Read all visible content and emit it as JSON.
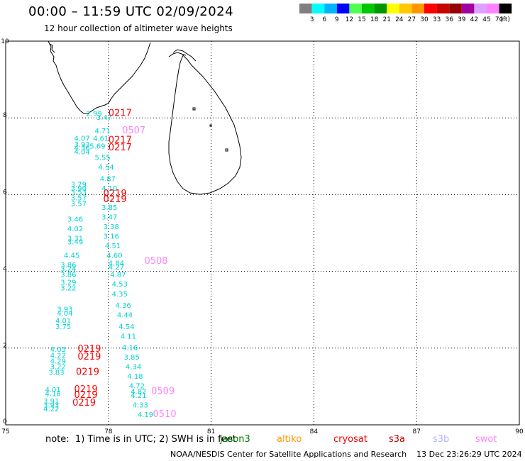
{
  "header": {
    "title": "00:00 – 11:59 UTC 02/09/2024",
    "subtitle": "12 hour collection of altimeter wave heights"
  },
  "colorbar": {
    "colors": [
      "#808080",
      "#00ffff",
      "#00b4ff",
      "#0000ff",
      "#50ff50",
      "#00c800",
      "#009600",
      "#ffff00",
      "#ffc800",
      "#ff9600",
      "#ff0000",
      "#c80000",
      "#960000",
      "#a000a0",
      "#dca0ff",
      "#ff82ff",
      "#000000"
    ],
    "labels": [
      "3",
      "6",
      "9",
      "12",
      "15",
      "18",
      "21",
      "24",
      "27",
      "30",
      "33",
      "36",
      "39",
      "42",
      "45",
      "70",
      "(ft)"
    ]
  },
  "axes": {
    "x_ticks": [
      "75",
      "78",
      "81",
      "84",
      "87",
      "90"
    ],
    "y_ticks": [
      "0",
      "2",
      "4",
      "6",
      "8",
      "10"
    ]
  },
  "chart_data": {
    "type": "scatter",
    "xlim": [
      75,
      90
    ],
    "ylim": [
      0,
      10
    ],
    "grid": true,
    "units": "ft",
    "passes": [
      {
        "label": "0217",
        "satellite": "cryosat",
        "lon": 78.0,
        "lat": 8.05
      },
      {
        "label": "0507",
        "satellite": "swot",
        "lon": 78.4,
        "lat": 7.6
      },
      {
        "label": "0217",
        "satellite": "cryosat",
        "lon": 78.0,
        "lat": 7.35
      },
      {
        "label": "0217",
        "satellite": "cryosat",
        "lon": 78.0,
        "lat": 7.15
      },
      {
        "label": "0219",
        "satellite": "cryosat",
        "lon": 77.85,
        "lat": 5.95
      },
      {
        "label": "0219",
        "satellite": "cryosat",
        "lon": 77.85,
        "lat": 5.8
      },
      {
        "label": "0508",
        "satellite": "swot",
        "lon": 79.05,
        "lat": 4.2
      },
      {
        "label": "0219",
        "satellite": "cryosat",
        "lon": 77.1,
        "lat": 1.9
      },
      {
        "label": "0219",
        "satellite": "cryosat",
        "lon": 77.1,
        "lat": 1.7
      },
      {
        "label": "0219",
        "satellite": "cryosat",
        "lon": 77.05,
        "lat": 1.3
      },
      {
        "label": "0219",
        "satellite": "cryosat",
        "lon": 77.0,
        "lat": 0.85
      },
      {
        "label": "0219",
        "satellite": "cryosat",
        "lon": 77.0,
        "lat": 0.7
      },
      {
        "label": "0219",
        "satellite": "cryosat",
        "lon": 76.95,
        "lat": 0.5
      },
      {
        "label": "0509",
        "satellite": "swot",
        "lon": 79.25,
        "lat": 0.8
      },
      {
        "label": "0510",
        "satellite": "swot",
        "lon": 79.3,
        "lat": 0.2
      }
    ],
    "points": [
      {
        "v": "2.99",
        "lon": 77.35,
        "lat": 8.05
      },
      {
        "v": "3.4?",
        "lon": 77.65,
        "lat": 7.95
      },
      {
        "v": "4.71",
        "lon": 77.6,
        "lat": 7.6
      },
      {
        "v": "4.07",
        "lon": 77.0,
        "lat": 7.4
      },
      {
        "v": "4.61",
        "lon": 77.55,
        "lat": 7.4
      },
      {
        "v": "3.93",
        "lon": 77.0,
        "lat": 7.25
      },
      {
        "v": "5.69",
        "lon": 77.45,
        "lat": 7.2
      },
      {
        "v": "4.36",
        "lon": 77.0,
        "lat": 7.15
      },
      {
        "v": "4.04",
        "lon": 77.0,
        "lat": 7.05
      },
      {
        "v": "5.55",
        "lon": 77.6,
        "lat": 6.9
      },
      {
        "v": "4.54",
        "lon": 77.7,
        "lat": 6.65
      },
      {
        "v": "4.87",
        "lon": 77.75,
        "lat": 6.35
      },
      {
        "v": "3.79",
        "lon": 76.9,
        "lat": 6.2
      },
      {
        "v": "3.90",
        "lon": 76.9,
        "lat": 6.1
      },
      {
        "v": "4.10",
        "lon": 77.8,
        "lat": 6.1
      },
      {
        "v": "3.53",
        "lon": 76.9,
        "lat": 6.0
      },
      {
        "v": "3.57",
        "lon": 76.9,
        "lat": 5.85
      },
      {
        "v": "3.57",
        "lon": 76.9,
        "lat": 5.7
      },
      {
        "v": "3.85",
        "lon": 77.8,
        "lat": 5.6
      },
      {
        "v": "3.46",
        "lon": 76.8,
        "lat": 5.3
      },
      {
        "v": "3.47",
        "lon": 77.8,
        "lat": 5.35
      },
      {
        "v": "4.02",
        "lon": 76.8,
        "lat": 5.05
      },
      {
        "v": "3.38",
        "lon": 77.85,
        "lat": 5.1
      },
      {
        "v": "3.31",
        "lon": 76.8,
        "lat": 4.8
      },
      {
        "v": "3.16",
        "lon": 77.85,
        "lat": 4.85
      },
      {
        "v": "3.49",
        "lon": 76.8,
        "lat": 4.7
      },
      {
        "v": "4.51",
        "lon": 77.9,
        "lat": 4.6
      },
      {
        "v": "4.45",
        "lon": 76.7,
        "lat": 4.35
      },
      {
        "v": "4.60",
        "lon": 77.95,
        "lat": 4.35
      },
      {
        "v": "3.86",
        "lon": 76.6,
        "lat": 4.1
      },
      {
        "v": "4.84",
        "lon": 78.0,
        "lat": 4.15
      },
      {
        "v": "3.24",
        "lon": 76.6,
        "lat": 4.0
      },
      {
        "v": "4.27",
        "lon": 78.0,
        "lat": 4.05
      },
      {
        "v": "3.86",
        "lon": 76.6,
        "lat": 3.85
      },
      {
        "v": "4.87",
        "lon": 78.05,
        "lat": 3.85
      },
      {
        "v": "3.29",
        "lon": 76.6,
        "lat": 3.65
      },
      {
        "v": "4.53",
        "lon": 78.1,
        "lat": 3.6
      },
      {
        "v": "3.22",
        "lon": 76.6,
        "lat": 3.5
      },
      {
        "v": "4.35",
        "lon": 78.1,
        "lat": 3.35
      },
      {
        "v": "4.36",
        "lon": 78.2,
        "lat": 3.05
      },
      {
        "v": "3.93",
        "lon": 76.5,
        "lat": 2.95
      },
      {
        "v": "4.04",
        "lon": 76.5,
        "lat": 2.85
      },
      {
        "v": "4.44",
        "lon": 78.25,
        "lat": 2.8
      },
      {
        "v": "4.01",
        "lon": 76.45,
        "lat": 2.65
      },
      {
        "v": "4.54",
        "lon": 78.3,
        "lat": 2.5
      },
      {
        "v": "3.75",
        "lon": 76.45,
        "lat": 2.5
      },
      {
        "v": "4.11",
        "lon": 78.35,
        "lat": 2.25
      },
      {
        "v": "4.03",
        "lon": 76.3,
        "lat": 1.9
      },
      {
        "v": "4.16",
        "lon": 78.4,
        "lat": 1.95
      },
      {
        "v": "4.22",
        "lon": 76.3,
        "lat": 1.75
      },
      {
        "v": "3.85",
        "lon": 78.45,
        "lat": 1.7
      },
      {
        "v": "4.29",
        "lon": 76.3,
        "lat": 1.6
      },
      {
        "v": "3.22",
        "lon": 76.3,
        "lat": 1.45
      },
      {
        "v": "4.34",
        "lon": 78.5,
        "lat": 1.45
      },
      {
        "v": "3.83",
        "lon": 76.25,
        "lat": 1.3
      },
      {
        "v": "4.18",
        "lon": 78.55,
        "lat": 1.2
      },
      {
        "v": "4.72",
        "lon": 78.6,
        "lat": 0.95
      },
      {
        "v": "4.01",
        "lon": 76.15,
        "lat": 0.85
      },
      {
        "v": "4.82",
        "lon": 78.65,
        "lat": 0.8
      },
      {
        "v": "4.18",
        "lon": 76.15,
        "lat": 0.75
      },
      {
        "v": "4.21",
        "lon": 78.65,
        "lat": 0.7
      },
      {
        "v": "3.91",
        "lon": 76.1,
        "lat": 0.55
      },
      {
        "v": "3.93",
        "lon": 76.1,
        "lat": 0.45
      },
      {
        "v": "4.33",
        "lon": 78.7,
        "lat": 0.45
      },
      {
        "v": "4.22",
        "lon": 76.1,
        "lat": 0.35
      },
      {
        "v": "4.19",
        "lon": 78.85,
        "lat": 0.2
      }
    ]
  },
  "footer": {
    "note": "note:  1) Time is in UTC; 2) SWH is in feet",
    "satellites": [
      {
        "name": "jason3",
        "color": "#007800"
      },
      {
        "name": "altiko",
        "color": "#ff9600"
      },
      {
        "name": "cryosat",
        "color": "#ff0000"
      },
      {
        "name": "s3a",
        "color": "#c80000"
      },
      {
        "name": "s3b",
        "color": "#b4b4ff"
      },
      {
        "name": "swot",
        "color": "#ff82ff"
      }
    ],
    "credit": "NOAA/NESDIS Center for Satellite Applications and Research    13 Dec 23:26:29 UTC 2024"
  },
  "colors": {
    "point": "#00d2d2",
    "cryosat": "#ff0000",
    "swot": "#ff82ff",
    "grid": "#000000"
  }
}
